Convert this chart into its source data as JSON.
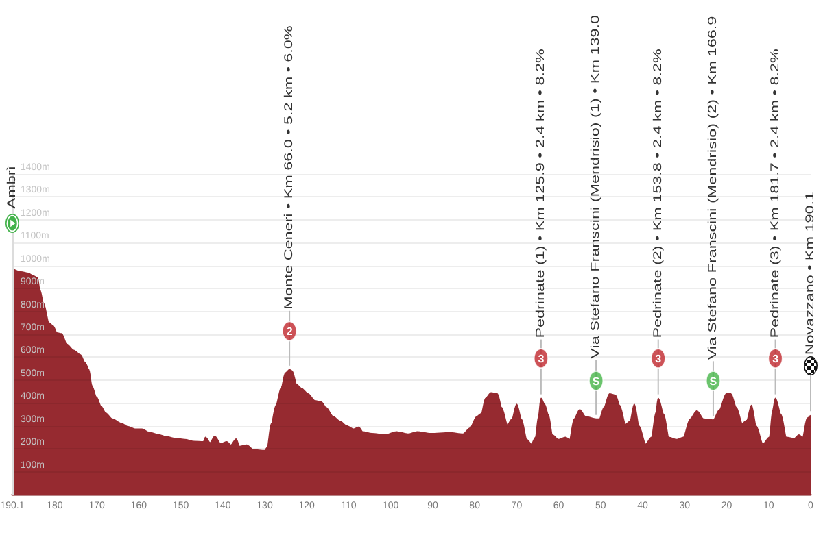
{
  "chart_data": {
    "type": "area",
    "x": [
      190.1,
      188.0,
      186.3,
      185.2,
      184.1,
      183.6,
      182.7,
      181.4,
      180.4,
      179.5,
      178.4,
      177.1,
      175.5,
      173.9,
      172.8,
      171.9,
      171.2,
      170.1,
      169.0,
      167.9,
      166.3,
      164.1,
      162.5,
      160.9,
      159.2,
      157.6,
      155.4,
      153.3,
      151.1,
      149.0,
      146.8,
      144.6,
      144.1,
      143.0,
      141.9,
      140.5,
      139.0,
      138.1,
      136.8,
      136.0,
      134.3,
      132.7,
      130.0,
      129.4,
      128.4,
      127.3,
      126.0,
      125.1,
      124.1,
      123.5,
      122.4,
      121.3,
      119.7,
      118.1,
      116.5,
      115.4,
      113.7,
      112.1,
      110.5,
      108.9,
      107.6,
      106.7,
      104.5,
      101.3,
      98.6,
      95.9,
      93.7,
      90.5,
      86.0,
      82.8,
      81.1,
      79.5,
      78.4,
      77.4,
      76.1,
      74.6,
      73.6,
      72.2,
      71.1,
      70.0,
      68.9,
      67.6,
      66.5,
      65.5,
      64.8,
      64.2,
      63.4,
      62.5,
      61.5,
      60.1,
      58.4,
      57.4,
      56.3,
      55.0,
      53.6,
      51.1,
      50.3,
      49.2,
      47.9,
      46.5,
      45.5,
      44.1,
      43.0,
      42.0,
      40.9,
      39.3,
      37.9,
      36.8,
      36.3,
      35.0,
      33.8,
      31.9,
      30.3,
      28.7,
      27.1,
      25.5,
      23.2,
      21.7,
      20.1,
      19.0,
      17.7,
      16.3,
      15.2,
      14.1,
      13.0,
      11.4,
      9.8,
      9.0,
      8.4,
      7.1,
      5.8,
      3.9,
      2.8,
      1.9,
      0.8,
      0
    ],
    "series": [
      {
        "color": "#962a30",
        "values": [
          986,
          972,
          966,
          956,
          946,
          896,
          836,
          750,
          736,
          706,
          702,
          656,
          630,
          610,
          576,
          546,
          476,
          426,
          386,
          356,
          330,
          310,
          296,
          286,
          286,
          272,
          262,
          252,
          244,
          240,
          232,
          230,
          250,
          226,
          254,
          222,
          230,
          216,
          242,
          210,
          216,
          196,
          192,
          206,
          310,
          390,
          470,
          530,
          545,
          540,
          480,
          464,
          440,
          410,
          404,
          380,
          340,
          320,
          300,
          286,
          294,
          274,
          266,
          260,
          274,
          264,
          274,
          266,
          270,
          264,
          290,
          340,
          354,
          420,
          444,
          440,
          380,
          304,
          330,
          394,
          330,
          240,
          220,
          250,
          340,
          420,
          395,
          350,
          260,
          240,
          250,
          240,
          330,
          370,
          340,
          330,
          330,
          380,
          440,
          434,
          390,
          306,
          320,
          394,
          300,
          220,
          250,
          360,
          420,
          350,
          250,
          240,
          250,
          330,
          366,
          330,
          325,
          370,
          440,
          440,
          380,
          310,
          324,
          390,
          300,
          220,
          250,
          370,
          420,
          350,
          250,
          244,
          260,
          250,
          334,
          346
        ]
      },
      {
        "type": "scatter",
        "marker": "circle",
        "x": [
          124.1,
          64.2,
          51.1,
          36.3,
          23.2,
          8.4
        ],
        "values": [
          714,
          595,
          497,
          595,
          497,
          595
        ],
        "colors": [
          "#c1272d",
          "#c1272d",
          "#46b549",
          "#c1272d",
          "#46b549",
          "#c1272d"
        ]
      }
    ],
    "xlim": [
      190.1,
      0
    ],
    "xticks": [
      190.1,
      180,
      170,
      160,
      150,
      140,
      130,
      120,
      110,
      100,
      90,
      80,
      70,
      60,
      50,
      40,
      30,
      20,
      10,
      0
    ],
    "ylim": [
      0,
      1400
    ],
    "yticks": [
      {
        "value": 100,
        "label": "100m"
      },
      {
        "value": 200,
        "label": "200m"
      },
      {
        "value": 300,
        "label": "300m"
      },
      {
        "value": 400,
        "label": "400m"
      },
      {
        "value": 500,
        "label": "500m"
      },
      {
        "value": 600,
        "label": "600m"
      },
      {
        "value": 700,
        "label": "700m"
      },
      {
        "value": 800,
        "label": "800m"
      },
      {
        "value": 900,
        "label": "900m"
      },
      {
        "value": 1000,
        "label": "1000m"
      },
      {
        "value": 1100,
        "label": "1100m"
      },
      {
        "value": 1200,
        "label": "1200m"
      },
      {
        "value": 1300,
        "label": "1300m"
      },
      {
        "value": 1400,
        "label": "1400m"
      }
    ],
    "grid": "y",
    "annotations": [
      {
        "text": "Ambrì",
        "x": 190.1,
        "y": 986
      },
      {
        "text": "Monte Ceneri • Km 66.0 • 5.2 km • 6.0%",
        "x": 124.1,
        "y": 545
      },
      {
        "text": "2",
        "x": 124.1,
        "y": 714
      },
      {
        "text": "Pedrinate (1) • Km 125.9 • 2.4 km • 8.2%",
        "x": 64.2,
        "y": 420
      },
      {
        "text": "3",
        "x": 64.2,
        "y": 595
      },
      {
        "text": "Via Stefano Franscini (Mendrisio) (1) • Km 139.0",
        "x": 51.1,
        "y": 330
      },
      {
        "text": "S",
        "x": 51.1,
        "y": 497
      },
      {
        "text": "Pedrinate (2) • Km 153.8 • 2.4 km • 8.2%",
        "x": 36.3,
        "y": 420
      },
      {
        "text": "3",
        "x": 36.3,
        "y": 595
      },
      {
        "text": "Via Stefano Franscini (Mendrisio) (2) • Km 166.9",
        "x": 23.2,
        "y": 325
      },
      {
        "text": "S",
        "x": 23.2,
        "y": 497
      },
      {
        "text": "Pedrinate (3) • Km 181.7 • 2.4 km • 8.2%",
        "x": 8.4,
        "y": 420
      },
      {
        "text": "3",
        "x": 8.4,
        "y": 595
      },
      {
        "text": "Novazzano • Km 190.1",
        "x": 0,
        "y": 346
      }
    ]
  }
}
